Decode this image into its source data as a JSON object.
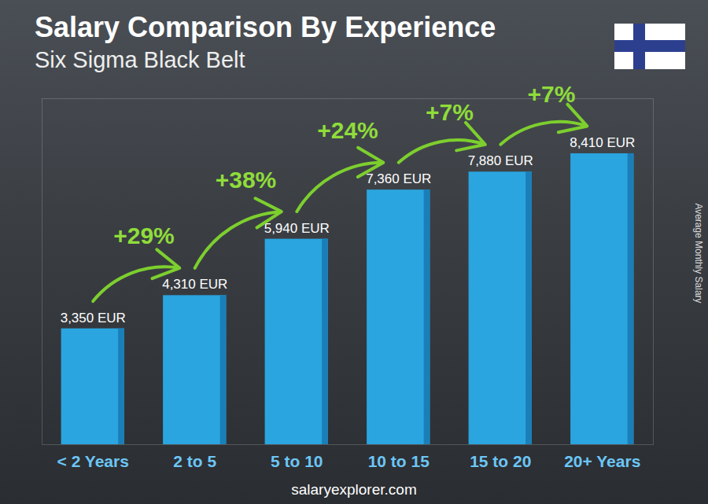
{
  "chart_data": {
    "type": "bar",
    "title": "Salary Comparison By Experience",
    "subtitle": "Six Sigma Black Belt",
    "y_label": "Average Monthly Salary",
    "caption": "salaryexplorer.com",
    "categories": [
      "< 2 Years",
      "2 to 5",
      "5 to 10",
      "10 to 15",
      "15 to 20",
      "20+ Years"
    ],
    "values": [
      3350,
      4310,
      5940,
      7360,
      7880,
      8410
    ],
    "value_labels": [
      "3,350 EUR",
      "4,310 EUR",
      "5,940 EUR",
      "7,360 EUR",
      "7,880 EUR",
      "8,410 EUR"
    ],
    "data_labels": true,
    "changes": [
      {
        "value": 29,
        "label": "+29%"
      },
      {
        "value": 38,
        "label": "+38%"
      },
      {
        "value": 24,
        "label": "+24%"
      },
      {
        "value": 7,
        "label": "+7%"
      },
      {
        "value": 7,
        "label": "+7%"
      }
    ],
    "color": "#2aa5e0",
    "ylim": [
      0,
      10000
    ],
    "tick_labels": "x",
    "grid": false
  }
}
